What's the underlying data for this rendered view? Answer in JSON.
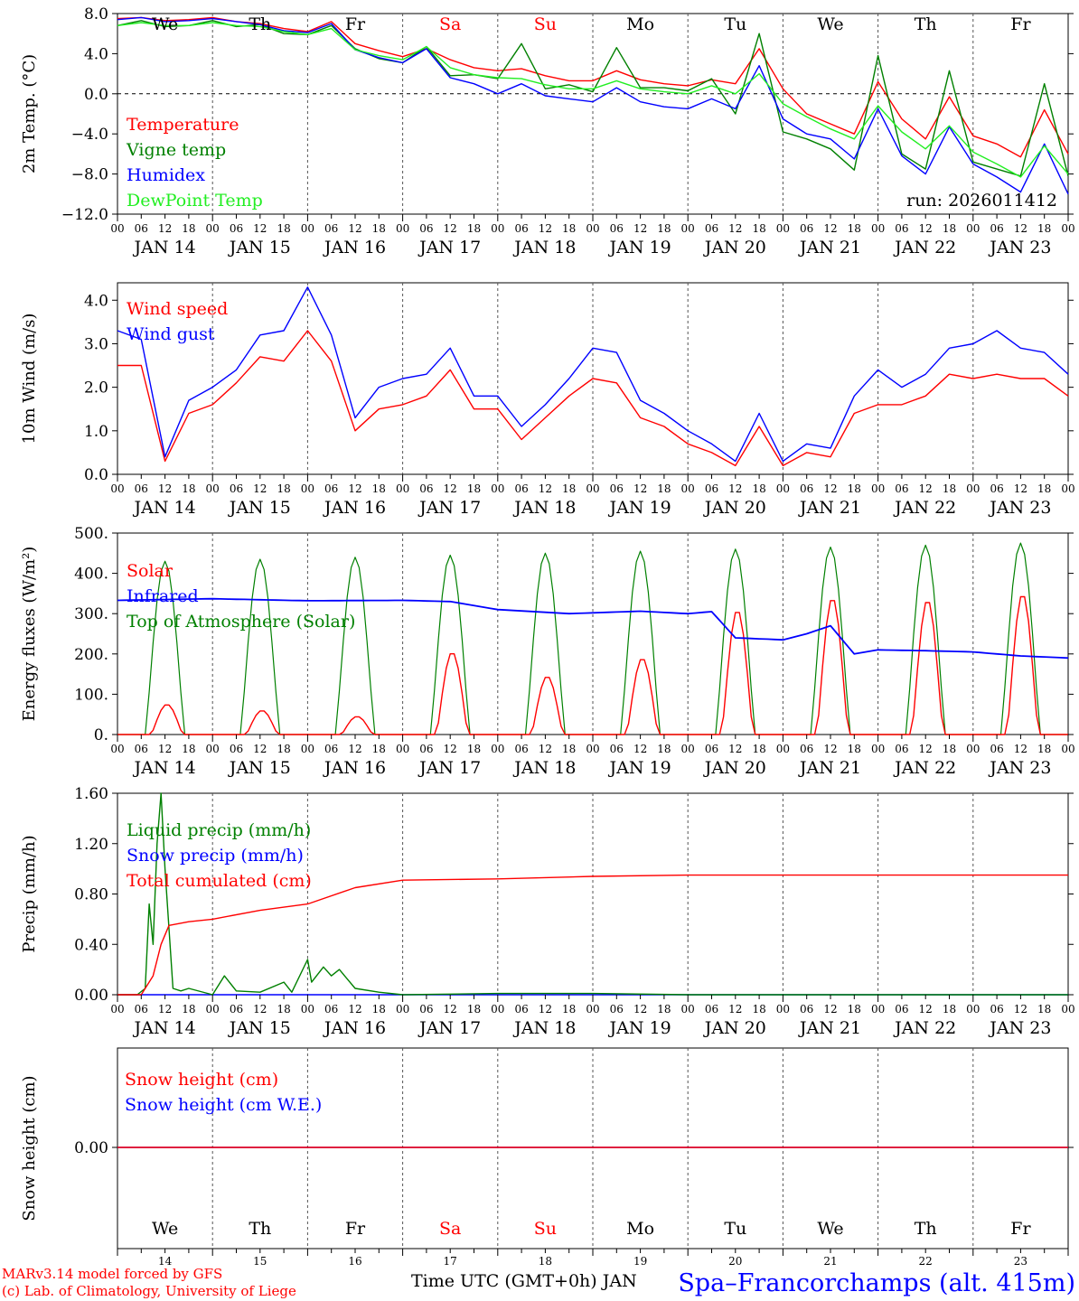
{
  "days": [
    "JAN 14",
    "JAN 15",
    "JAN 16",
    "JAN 17",
    "JAN 18",
    "JAN 19",
    "JAN 20",
    "JAN 21",
    "JAN 22",
    "JAN 23"
  ],
  "weekdays": [
    "We",
    "Th",
    "Fr",
    "Sa",
    "Su",
    "Mo",
    "Tu",
    "We",
    "Th",
    "Fr"
  ],
  "weekend_flags": [
    false,
    false,
    false,
    true,
    true,
    false,
    false,
    false,
    false,
    false
  ],
  "day_numbers": [
    "14",
    "15",
    "16",
    "17",
    "18",
    "19",
    "20",
    "21",
    "22",
    "23"
  ],
  "hour_labels": [
    "00",
    "06",
    "12",
    "18"
  ],
  "final_hour_label": "00",
  "colors": {
    "red": "#ff0000",
    "green": "#008000",
    "blue": "#0000ff",
    "lightgreen": "#22ee22",
    "title_blue": "#0000ff"
  },
  "footer": {
    "credit_1": "MARv3.14 model forced by GFS",
    "credit_2": "(c) Lab. of Climatology, University of Liege",
    "xlabel": "Time UTC (GMT+0h) JAN",
    "station": "Spa–Francorchamps (alt. 415m)"
  },
  "chart_data": [
    {
      "type": "line",
      "ylabel": "2m Temp. (°C)",
      "ytick_labels": [
        "8.0",
        "4.0",
        "0.0",
        "−4.0",
        "−8.0",
        "−12.0"
      ],
      "ytick_values": [
        8,
        4,
        0,
        -4,
        -8,
        -12
      ],
      "ylim": [
        -12,
        8
      ],
      "zero_line": true,
      "run_label": "run: 2026011412",
      "x_hours": [
        0,
        6,
        12,
        18,
        24,
        30,
        36,
        42,
        48,
        54,
        60,
        66,
        72,
        78,
        84,
        90,
        96,
        102,
        108,
        114,
        120,
        126,
        132,
        138,
        144,
        150,
        156,
        162,
        168,
        174,
        180,
        186,
        192,
        198,
        204,
        210,
        216,
        222,
        228,
        234,
        240
      ],
      "series": [
        {
          "name": "Temperature",
          "color": "red",
          "values": [
            7.5,
            7.6,
            7.3,
            7.4,
            7.6,
            7.2,
            7.0,
            6.5,
            6.2,
            7.2,
            5.0,
            4.3,
            3.7,
            4.5,
            3.4,
            2.6,
            2.3,
            2.5,
            1.8,
            1.3,
            1.3,
            2.3,
            1.4,
            1.0,
            0.8,
            1.4,
            1.0,
            4.5,
            0.5,
            -2.0,
            -3.0,
            -4.0,
            1.2,
            -2.5,
            -4.5,
            -0.3,
            -4.2,
            -5.0,
            -6.3,
            -1.6,
            -6.0
          ]
        },
        {
          "name": "Vigne temp",
          "color": "green",
          "values": [
            6.8,
            7.3,
            6.7,
            6.8,
            7.3,
            6.7,
            6.9,
            6.0,
            5.9,
            6.8,
            4.5,
            3.5,
            3.1,
            4.7,
            1.8,
            1.9,
            1.5,
            5.0,
            0.5,
            0.9,
            0.2,
            4.6,
            0.6,
            0.6,
            0.3,
            1.5,
            -2.0,
            6.0,
            -3.8,
            -4.5,
            -5.5,
            -7.6,
            3.8,
            -6.0,
            -7.5,
            2.3,
            -6.8,
            -7.5,
            -8.2,
            1.0,
            -8.2
          ]
        },
        {
          "name": "Humidex",
          "color": "blue",
          "values": [
            7.4,
            7.6,
            7.2,
            7.3,
            7.5,
            7.2,
            6.9,
            6.3,
            6.1,
            7.0,
            4.4,
            3.6,
            3.1,
            4.5,
            1.6,
            1.0,
            0.0,
            1.0,
            -0.2,
            -0.5,
            -0.8,
            0.6,
            -0.8,
            -1.3,
            -1.5,
            -0.5,
            -1.5,
            2.8,
            -2.5,
            -4.0,
            -4.5,
            -6.5,
            -1.5,
            -6.2,
            -8.0,
            -3.3,
            -7.0,
            -8.3,
            -9.8,
            -5.0,
            -10.0
          ]
        },
        {
          "name": "DewPoint Temp",
          "color": "lightgreen",
          "values": [
            6.8,
            7.1,
            6.8,
            6.8,
            7.1,
            6.8,
            6.7,
            6.2,
            5.9,
            6.5,
            4.4,
            3.8,
            3.4,
            4.7,
            2.6,
            1.9,
            1.6,
            1.5,
            0.9,
            0.5,
            0.5,
            1.3,
            0.5,
            0.2,
            0.0,
            0.8,
            0.0,
            2.0,
            -1.0,
            -2.3,
            -3.5,
            -4.5,
            -1.2,
            -3.8,
            -5.5,
            -3.2,
            -5.8,
            -7.0,
            -8.3,
            -5.2,
            -8.0
          ]
        }
      ]
    },
    {
      "type": "line",
      "ylabel": "10m Wind (m/s)",
      "ytick_labels": [
        "4.0",
        "3.0",
        "2.0",
        "1.0",
        "0.0"
      ],
      "ytick_values": [
        4,
        3,
        2,
        1,
        0
      ],
      "ylim": [
        0,
        4.4
      ],
      "x_hours": [
        0,
        6,
        12,
        18,
        24,
        30,
        36,
        42,
        48,
        54,
        60,
        66,
        72,
        78,
        84,
        90,
        96,
        102,
        108,
        114,
        120,
        126,
        132,
        138,
        144,
        150,
        156,
        162,
        168,
        174,
        180,
        186,
        192,
        198,
        204,
        210,
        216,
        222,
        228,
        234,
        240
      ],
      "series": [
        {
          "name": "Wind speed",
          "color": "red",
          "values": [
            2.5,
            2.5,
            0.3,
            1.4,
            1.6,
            2.1,
            2.7,
            2.6,
            3.3,
            2.6,
            1.0,
            1.5,
            1.6,
            1.8,
            2.4,
            1.5,
            1.5,
            0.8,
            1.3,
            1.8,
            2.2,
            2.1,
            1.3,
            1.1,
            0.7,
            0.5,
            0.2,
            1.1,
            0.2,
            0.5,
            0.4,
            1.4,
            1.6,
            1.6,
            1.8,
            2.3,
            2.2,
            2.3,
            2.2,
            2.2,
            1.8
          ]
        },
        {
          "name": "Wind gust",
          "color": "blue",
          "values": [
            3.3,
            3.1,
            0.4,
            1.7,
            2.0,
            2.4,
            3.2,
            3.3,
            4.3,
            3.2,
            1.3,
            2.0,
            2.2,
            2.3,
            2.9,
            1.8,
            1.8,
            1.1,
            1.6,
            2.2,
            2.9,
            2.8,
            1.7,
            1.4,
            1.0,
            0.7,
            0.3,
            1.4,
            0.3,
            0.7,
            0.6,
            1.8,
            2.4,
            2.0,
            2.3,
            2.9,
            3.0,
            3.3,
            2.9,
            2.8,
            2.3
          ]
        }
      ]
    },
    {
      "type": "line",
      "ylabel": "Energy fluxes (W/m²)",
      "ytick_labels": [
        "500.",
        "400.",
        "300.",
        "200.",
        "100.",
        "0."
      ],
      "ytick_values": [
        500,
        400,
        300,
        200,
        100,
        0
      ],
      "ylim": [
        0,
        500
      ],
      "series": [
        {
          "name": "Solar",
          "color": "red",
          "daily_peak_values": [
            75,
            60,
            45,
            205,
            145,
            190,
            310,
            340,
            335,
            350
          ]
        },
        {
          "name": "Infrared",
          "color": "blue",
          "x_hours": [
            0,
            24,
            48,
            72,
            84,
            96,
            114,
            132,
            144,
            150,
            156,
            168,
            174,
            180,
            186,
            192,
            204,
            216,
            228,
            240
          ],
          "values": [
            333,
            337,
            332,
            333,
            330,
            310,
            300,
            306,
            300,
            305,
            240,
            235,
            250,
            270,
            200,
            210,
            208,
            205,
            195,
            190
          ]
        },
        {
          "name": "Top of Atmosphere (Solar)",
          "color": "green",
          "daily_peak_values": [
            430,
            435,
            440,
            445,
            450,
            455,
            460,
            465,
            470,
            475
          ]
        }
      ]
    },
    {
      "type": "line",
      "ylabel": "Precip (mm/h)",
      "ytick_labels": [
        "1.60",
        "1.20",
        "0.80",
        "0.40",
        "0.00"
      ],
      "ytick_values": [
        1.6,
        1.2,
        0.8,
        0.4,
        0
      ],
      "ylim": [
        0,
        1.6
      ],
      "series": [
        {
          "name": "Liquid precip (mm/h)",
          "color": "green",
          "x_hours": [
            0,
            5,
            7,
            8,
            9,
            10,
            11,
            12,
            14,
            16,
            18,
            24,
            27,
            30,
            36,
            42,
            44,
            48,
            49,
            52,
            54,
            56,
            60,
            66,
            72,
            96,
            120,
            144,
            168,
            192,
            240
          ],
          "values": [
            0,
            0,
            0.05,
            0.72,
            0.4,
            1.2,
            1.6,
            1.0,
            0.05,
            0.03,
            0.05,
            0,
            0.15,
            0.03,
            0.02,
            0.1,
            0.02,
            0.28,
            0.1,
            0.22,
            0.15,
            0.2,
            0.05,
            0.02,
            0,
            0.01,
            0.01,
            0,
            0,
            0,
            0
          ]
        },
        {
          "name": "Snow precip (mm/h)",
          "color": "blue",
          "x_hours": [
            0,
            240
          ],
          "values": [
            0,
            0
          ]
        },
        {
          "name": "Total cumulated (cm)",
          "color": "red",
          "x_hours": [
            0,
            6,
            9,
            11,
            13,
            18,
            24,
            36,
            48,
            60,
            72,
            96,
            120,
            144,
            168,
            192,
            240
          ],
          "values": [
            0,
            0,
            0.15,
            0.4,
            0.55,
            0.58,
            0.6,
            0.67,
            0.72,
            0.85,
            0.91,
            0.92,
            0.94,
            0.95,
            0.95,
            0.95,
            0.95
          ]
        }
      ]
    },
    {
      "type": "line",
      "ylabel": "Snow height (cm)",
      "ytick_labels": [
        "0.00"
      ],
      "ytick_values": [
        0
      ],
      "series": [
        {
          "name": "Snow height (cm)",
          "color": "red",
          "x_hours": [
            0,
            240
          ],
          "values": [
            0,
            0
          ]
        },
        {
          "name": "Snow height (cm W.E.)",
          "color": "blue",
          "x_hours": [
            0,
            240
          ],
          "values": [
            0,
            0
          ]
        }
      ]
    }
  ]
}
